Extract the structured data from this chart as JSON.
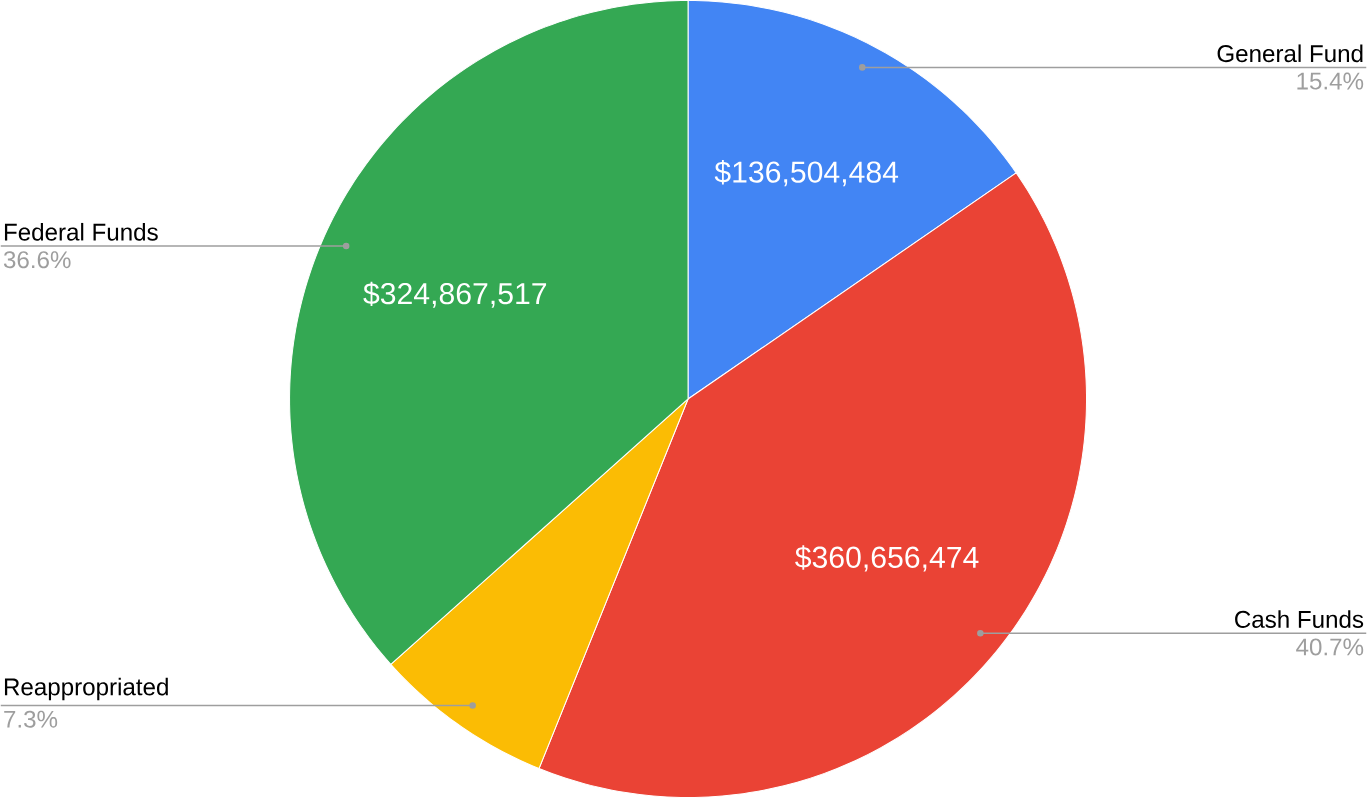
{
  "chart_data": {
    "type": "pie",
    "categories": [
      "General Fund",
      "Cash Funds",
      "Reappropriated",
      "Federal Funds"
    ],
    "values": [
      15.4,
      40.7,
      7.3,
      36.6
    ],
    "value_labels": [
      "15.4%",
      "40.7%",
      "7.3%",
      "36.6%"
    ],
    "colors": [
      "#4285f4",
      "#ea4335",
      "#fbbc04",
      "#34a853"
    ],
    "annotations": [
      {
        "text": "$136,504,484",
        "x": "General Fund"
      },
      {
        "text": "$360,656,474",
        "x": "Cash Funds"
      },
      {
        "text": "$324,867,517",
        "x": "Federal Funds"
      }
    ]
  }
}
